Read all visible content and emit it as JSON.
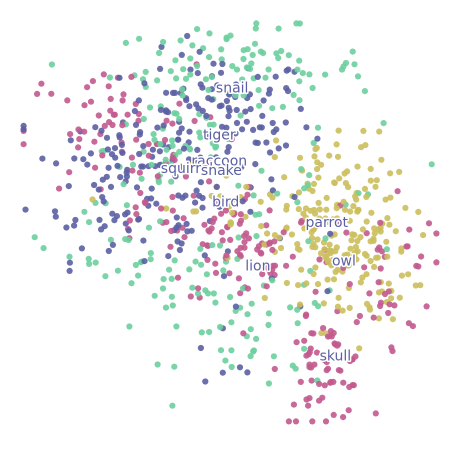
{
  "chart_data": {
    "type": "scatter",
    "title": "",
    "xlabel": "",
    "ylabel": "",
    "xlim": [
      0,
      100
    ],
    "ylim": [
      0,
      100
    ],
    "grid": false,
    "axes_visible": false,
    "legend": "none",
    "colors": {
      "blue": "#5b5fa3",
      "green": "#6dcf9f",
      "pink": "#c25a8e",
      "yellow": "#cbbf5d"
    },
    "annotations": [
      {
        "text": "snail",
        "x": 50.5,
        "y": 82.4
      },
      {
        "text": "tiger",
        "x": 47.5,
        "y": 71.2
      },
      {
        "text": "raccoon",
        "x": 47.5,
        "y": 65.0
      },
      {
        "text": "squirrel",
        "x": 40.0,
        "y": 63.2
      },
      {
        "text": "snake",
        "x": 48.0,
        "y": 62.8
      },
      {
        "text": "bird",
        "x": 49.0,
        "y": 55.2
      },
      {
        "text": "parrot",
        "x": 72.5,
        "y": 50.3
      },
      {
        "text": "owl",
        "x": 76.5,
        "y": 41.2
      },
      {
        "text": "lion",
        "x": 56.5,
        "y": 40.0
      },
      {
        "text": "skull",
        "x": 74.5,
        "y": 18.5
      }
    ],
    "series": [
      {
        "color": "blue",
        "clusters": [
          {
            "cx": 47,
            "cy": 75,
            "sx": 11,
            "sy": 8,
            "n": 120
          },
          {
            "cx": 22,
            "cy": 62,
            "sx": 9,
            "sy": 10,
            "n": 70
          },
          {
            "cx": 40,
            "cy": 50,
            "sx": 12,
            "sy": 8,
            "n": 40
          },
          {
            "cx": 50,
            "cy": 20,
            "sx": 8,
            "sy": 6,
            "n": 8
          }
        ]
      },
      {
        "color": "green",
        "clusters": [
          {
            "cx": 52,
            "cy": 87,
            "sx": 15,
            "sy": 5,
            "n": 90
          },
          {
            "cx": 37,
            "cy": 68,
            "sx": 8,
            "sy": 7,
            "n": 45
          },
          {
            "cx": 36,
            "cy": 36,
            "sx": 10,
            "sy": 7,
            "n": 40
          },
          {
            "cx": 57,
            "cy": 22,
            "sx": 9,
            "sy": 6,
            "n": 35
          },
          {
            "cx": 68,
            "cy": 55,
            "sx": 12,
            "sy": 14,
            "n": 30
          },
          {
            "cx": 18,
            "cy": 48,
            "sx": 6,
            "sy": 5,
            "n": 12
          }
        ]
      },
      {
        "color": "pink",
        "clusters": [
          {
            "cx": 72,
            "cy": 15,
            "sx": 5,
            "sy": 6,
            "n": 60
          },
          {
            "cx": 22,
            "cy": 72,
            "sx": 10,
            "sy": 8,
            "n": 60
          },
          {
            "cx": 55,
            "cy": 44,
            "sx": 10,
            "sy": 7,
            "n": 70
          },
          {
            "cx": 85,
            "cy": 40,
            "sx": 7,
            "sy": 10,
            "n": 45
          },
          {
            "cx": 36,
            "cy": 56,
            "sx": 9,
            "sy": 8,
            "n": 40
          }
        ]
      },
      {
        "color": "yellow",
        "clusters": [
          {
            "cx": 76,
            "cy": 44,
            "sx": 8,
            "sy": 9,
            "n": 170
          },
          {
            "cx": 74,
            "cy": 64,
            "sx": 7,
            "sy": 5,
            "n": 35
          },
          {
            "cx": 48,
            "cy": 54,
            "sx": 10,
            "sy": 5,
            "n": 25
          }
        ]
      }
    ]
  }
}
